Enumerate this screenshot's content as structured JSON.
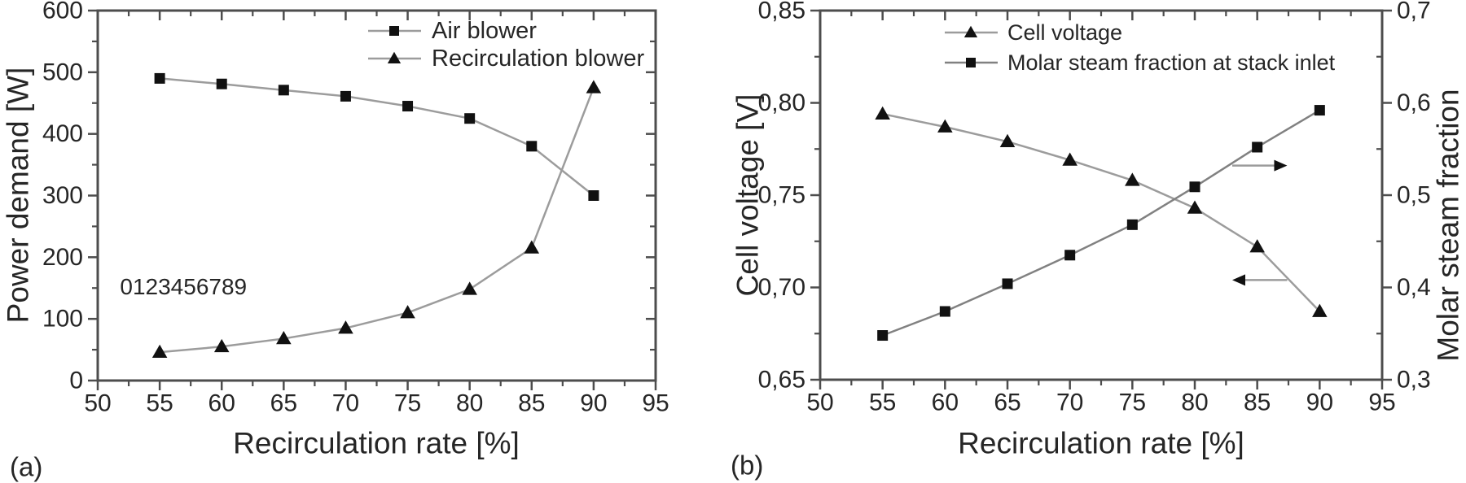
{
  "figure": {
    "background": "#ffffff",
    "text_color": "#262626",
    "frame_color": "#4d4d4d",
    "marker_color": "#111111",
    "connector_line_color": "#9c9c9c"
  },
  "chart_data": [
    {
      "type": "line",
      "panel": "a",
      "tag": "(a)",
      "title": "",
      "xlabel": "Recirculation rate [%]",
      "ylabel": "Power demand [W]",
      "xlim": [
        50,
        95
      ],
      "ylim": [
        0,
        600
      ],
      "grid": false,
      "legend_position": "top-right",
      "xticks": [
        50,
        55,
        60,
        65,
        70,
        75,
        80,
        85,
        90,
        95
      ],
      "xtick_labels": [
        "50",
        "55",
        "60",
        "65",
        "70",
        "75",
        "80",
        "85",
        "90",
        "95"
      ],
      "yticks": [
        0,
        100,
        200,
        300,
        400,
        500,
        600
      ],
      "ytick_labels": [
        "0",
        "100",
        "200",
        "300",
        "400",
        "500",
        "600"
      ],
      "x": [
        55,
        60,
        65,
        70,
        75,
        80,
        85,
        90
      ],
      "series": [
        {
          "name": "Air blower",
          "marker": "square",
          "values": [
            490,
            481,
            471,
            461,
            445,
            425,
            380,
            300
          ],
          "line_color": "#9c9c9c"
        },
        {
          "name": "Recirculation blower",
          "marker": "triangle",
          "values": [
            46,
            55,
            68,
            85,
            110,
            148,
            215,
            475
          ],
          "line_color": "#9c9c9c"
        }
      ],
      "annotation": {
        "text": "0123456789",
        "x": 51.8,
        "y": 152
      }
    },
    {
      "type": "line",
      "panel": "b",
      "tag": "(b)",
      "title": "",
      "xlabel": "Recirculation rate [%]",
      "ylabel_left": "Cell voltage [V]",
      "ylabel_right": "Molar steam fraction",
      "xlim": [
        50,
        95
      ],
      "ylim_left": [
        0.65,
        0.85
      ],
      "ylim_right": [
        0.3,
        0.7
      ],
      "grid": false,
      "legend_position": "top-right",
      "xticks": [
        50,
        55,
        60,
        65,
        70,
        75,
        80,
        85,
        90,
        95
      ],
      "xtick_labels": [
        "50",
        "55",
        "60",
        "65",
        "70",
        "75",
        "80",
        "85",
        "90",
        "95"
      ],
      "yticks_left": [
        0.65,
        0.7,
        0.75,
        0.8,
        0.85
      ],
      "ytick_labels_left": [
        "0,65",
        "0,70",
        "0,75",
        "0,80",
        "0,85"
      ],
      "yticks_right": [
        0.3,
        0.4,
        0.5,
        0.6,
        0.7
      ],
      "ytick_labels_right": [
        "0,3",
        "0,4",
        "0,5",
        "0,6",
        "0,7"
      ],
      "x": [
        55,
        60,
        65,
        70,
        75,
        80,
        85,
        90
      ],
      "series": [
        {
          "name": "Cell voltage",
          "marker": "triangle",
          "axis": "left",
          "values": [
            0.794,
            0.787,
            0.779,
            0.769,
            0.758,
            0.743,
            0.722,
            0.687
          ],
          "line_color": "#9c9c9c"
        },
        {
          "name": "Molar steam fraction at stack inlet",
          "marker": "square",
          "axis": "right",
          "values": [
            0.348,
            0.374,
            0.404,
            0.435,
            0.468,
            0.509,
            0.552,
            0.592
          ],
          "line_color": "#818181"
        }
      ],
      "axis_arrows": [
        {
          "direction": "right",
          "x_from": 83.0,
          "x_to": 87.4,
          "y_left_axis": 0.766
        },
        {
          "direction": "left",
          "x_from": 87.4,
          "x_to": 83.0,
          "y_left_axis": 0.704
        }
      ]
    }
  ]
}
